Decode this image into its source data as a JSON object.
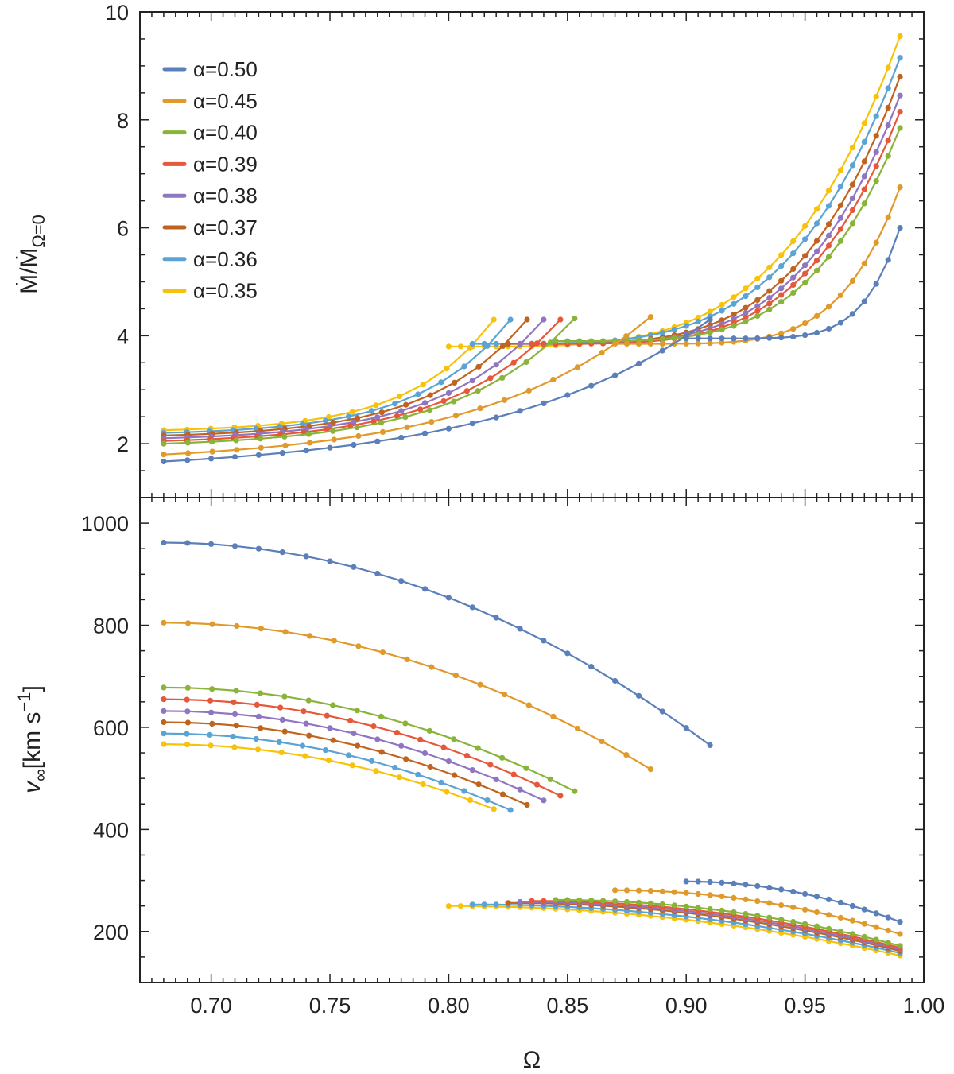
{
  "chart_data": [
    {
      "type": "line",
      "panel": "top",
      "title": "",
      "xlabel": "",
      "ylabel_main": "Ṁ/Ṁ",
      "ylabel_sub": "Ω=0",
      "xlim": [
        0.67,
        1.0
      ],
      "ylim": [
        1.0,
        10.0
      ],
      "yticks": [
        2,
        4,
        6,
        8,
        10
      ],
      "ytick_labels": [
        "2",
        "4",
        "6",
        "8",
        "10"
      ],
      "legend_position": "top-left",
      "legend": [
        {
          "name": "α=0.50",
          "color": "#5b7fb9"
        },
        {
          "name": "α=0.45",
          "color": "#e09a2b"
        },
        {
          "name": "α=0.40",
          "color": "#8ab33a"
        },
        {
          "name": "α=0.39",
          "color": "#e5583a"
        },
        {
          "name": "α=0.38",
          "color": "#8f76c0"
        },
        {
          "name": "α=0.37",
          "color": "#c0631e"
        },
        {
          "name": "α=0.36",
          "color": "#5aa3d4"
        },
        {
          "name": "α=0.35",
          "color": "#f9c20a"
        }
      ],
      "series": [
        {
          "name": "α=0.50",
          "color": "#5b7fb9",
          "branches": [
            {
              "x_range": [
                0.68,
                0.91
              ],
              "step": 0.01,
              "fn": "exp",
              "p": [
                1.67,
                4.3,
                2.6
              ]
            },
            {
              "x_range": [
                0.9,
                0.99
              ],
              "step": 0.005,
              "fn": "pow",
              "p": [
                3.95,
                6.0,
                6
              ]
            }
          ]
        },
        {
          "name": "α=0.45",
          "color": "#e09a2b",
          "branches": [
            {
              "x_range": [
                0.68,
                0.885
              ],
              "step": 0.01,
              "fn": "exp",
              "p": [
                1.8,
                4.35,
                2.8
              ]
            },
            {
              "x_range": [
                0.87,
                0.99
              ],
              "step": 0.005,
              "fn": "pow",
              "p": [
                3.85,
                6.75,
                5
              ]
            }
          ]
        },
        {
          "name": "α=0.40",
          "color": "#8ab33a",
          "branches": [
            {
              "x_range": [
                0.68,
                0.853
              ],
              "step": 0.01,
              "fn": "exp",
              "p": [
                2.0,
                4.32,
                3.5
              ]
            },
            {
              "x_range": [
                0.845,
                0.99
              ],
              "step": 0.005,
              "fn": "pow",
              "p": [
                3.9,
                7.85,
                4
              ]
            }
          ]
        },
        {
          "name": "α=0.39",
          "color": "#e5583a",
          "branches": [
            {
              "x_range": [
                0.68,
                0.847
              ],
              "step": 0.01,
              "fn": "exp",
              "p": [
                2.05,
                4.3,
                3.6
              ]
            },
            {
              "x_range": [
                0.835,
                0.99
              ],
              "step": 0.005,
              "fn": "pow",
              "p": [
                3.85,
                8.15,
                4
              ]
            }
          ]
        },
        {
          "name": "α=0.38",
          "color": "#8f76c0",
          "branches": [
            {
              "x_range": [
                0.68,
                0.84
              ],
              "step": 0.01,
              "fn": "exp",
              "p": [
                2.1,
                4.3,
                3.7
              ]
            },
            {
              "x_range": [
                0.83,
                0.99
              ],
              "step": 0.005,
              "fn": "pow",
              "p": [
                3.85,
                8.45,
                4
              ]
            }
          ]
        },
        {
          "name": "α=0.37",
          "color": "#c0631e",
          "branches": [
            {
              "x_range": [
                0.68,
                0.833
              ],
              "step": 0.01,
              "fn": "exp",
              "p": [
                2.15,
                4.3,
                3.8
              ]
            },
            {
              "x_range": [
                0.825,
                0.99
              ],
              "step": 0.005,
              "fn": "pow",
              "p": [
                3.85,
                8.8,
                4
              ]
            }
          ]
        },
        {
          "name": "α=0.36",
          "color": "#5aa3d4",
          "branches": [
            {
              "x_range": [
                0.68,
                0.826
              ],
              "step": 0.01,
              "fn": "exp",
              "p": [
                2.2,
                4.3,
                3.9
              ]
            },
            {
              "x_range": [
                0.81,
                0.99
              ],
              "step": 0.005,
              "fn": "pow",
              "p": [
                3.85,
                9.15,
                4
              ]
            }
          ]
        },
        {
          "name": "α=0.35",
          "color": "#f9c20a",
          "branches": [
            {
              "x_range": [
                0.68,
                0.819
              ],
              "step": 0.01,
              "fn": "exp",
              "p": [
                2.25,
                4.3,
                4.0
              ]
            },
            {
              "x_range": [
                0.8,
                0.99
              ],
              "step": 0.005,
              "fn": "pow",
              "p": [
                3.8,
                9.55,
                4
              ]
            }
          ]
        }
      ]
    },
    {
      "type": "line",
      "panel": "bottom",
      "title": "",
      "xlabel": "Ω",
      "ylabel_main": "v",
      "ylabel_sub": "∞",
      "ylabel_unit": "[km s",
      "ylabel_exp": "−1",
      "ylabel_close": "]",
      "xlim": [
        0.67,
        1.0
      ],
      "ylim": [
        100,
        1050
      ],
      "yticks": [
        200,
        400,
        600,
        800,
        1000
      ],
      "ytick_labels": [
        "200",
        "400",
        "600",
        "800",
        "1000"
      ],
      "xticks": [
        0.7,
        0.75,
        0.8,
        0.85,
        0.9,
        0.95,
        1.0
      ],
      "xtick_labels": [
        "0.70",
        "0.75",
        "0.80",
        "0.85",
        "0.90",
        "0.95",
        "1.00"
      ],
      "series": [
        {
          "name": "α=0.50",
          "color": "#5b7fb9",
          "branches": [
            {
              "x_range": [
                0.68,
                0.91
              ],
              "step": 0.01,
              "fn": "pow",
              "p": [
                962,
                565,
                2
              ]
            },
            {
              "x_range": [
                0.9,
                0.99
              ],
              "step": 0.005,
              "fn": "pow",
              "p": [
                298,
                219,
                2
              ]
            }
          ]
        },
        {
          "name": "α=0.45",
          "color": "#e09a2b",
          "branches": [
            {
              "x_range": [
                0.68,
                0.885
              ],
              "step": 0.01,
              "fn": "pow",
              "p": [
                805,
                518,
                2
              ]
            },
            {
              "x_range": [
                0.87,
                0.99
              ],
              "step": 0.005,
              "fn": "pow",
              "p": [
                281,
                195,
                2
              ]
            }
          ]
        },
        {
          "name": "α=0.40",
          "color": "#8ab33a",
          "branches": [
            {
              "x_range": [
                0.68,
                0.853
              ],
              "step": 0.01,
              "fn": "pow",
              "p": [
                678,
                475,
                2
              ]
            },
            {
              "x_range": [
                0.845,
                0.99
              ],
              "step": 0.005,
              "fn": "pow",
              "p": [
                262,
                172,
                2
              ]
            }
          ]
        },
        {
          "name": "α=0.39",
          "color": "#e5583a",
          "branches": [
            {
              "x_range": [
                0.68,
                0.847
              ],
              "step": 0.01,
              "fn": "pow",
              "p": [
                655,
                466,
                2
              ]
            },
            {
              "x_range": [
                0.835,
                0.99
              ],
              "step": 0.005,
              "fn": "pow",
              "p": [
                260,
                168,
                2
              ]
            }
          ]
        },
        {
          "name": "α=0.38",
          "color": "#8f76c0",
          "branches": [
            {
              "x_range": [
                0.68,
                0.84
              ],
              "step": 0.01,
              "fn": "pow",
              "p": [
                632,
                457,
                2
              ]
            },
            {
              "x_range": [
                0.83,
                0.99
              ],
              "step": 0.005,
              "fn": "pow",
              "p": [
                258,
                165,
                2
              ]
            }
          ]
        },
        {
          "name": "α=0.37",
          "color": "#c0631e",
          "branches": [
            {
              "x_range": [
                0.68,
                0.833
              ],
              "step": 0.01,
              "fn": "pow",
              "p": [
                610,
                448,
                2
              ]
            },
            {
              "x_range": [
                0.825,
                0.99
              ],
              "step": 0.005,
              "fn": "pow",
              "p": [
                256,
                162,
                2
              ]
            }
          ]
        },
        {
          "name": "α=0.36",
          "color": "#5aa3d4",
          "branches": [
            {
              "x_range": [
                0.68,
                0.826
              ],
              "step": 0.01,
              "fn": "pow",
              "p": [
                588,
                438,
                2
              ]
            },
            {
              "x_range": [
                0.81,
                0.99
              ],
              "step": 0.005,
              "fn": "pow",
              "p": [
                253,
                158,
                2
              ]
            }
          ]
        },
        {
          "name": "α=0.35",
          "color": "#f9c20a",
          "branches": [
            {
              "x_range": [
                0.68,
                0.819
              ],
              "step": 0.01,
              "fn": "pow",
              "p": [
                567,
                440,
                2
              ]
            },
            {
              "x_range": [
                0.8,
                0.99
              ],
              "step": 0.005,
              "fn": "pow",
              "p": [
                250,
                153,
                2
              ]
            }
          ]
        }
      ]
    }
  ]
}
